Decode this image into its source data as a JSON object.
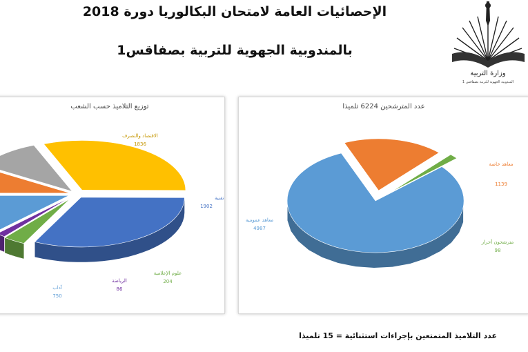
{
  "title_line1": "الإحصائيات العامة لامتحان البكالوريا دورة 2018",
  "title_line2": "بالمندوبية الجهوية للتربية بصفاقس1",
  "logo": {
    "text": "وزارة التربية",
    "subtext": "المندوبية الجهوية للتربية بصفاقس 1"
  },
  "footnote": "عدد التلاميذ المتمتعين بإجراءات استثنائية = 15 تلميذا",
  "colors": {
    "blue": "#5b9bd5",
    "orange": "#ed7d31",
    "green": "#70ad47",
    "gold": "#ffc000",
    "gray": "#a5a5a5",
    "purple": "#7030a0",
    "darkblue": "#4472c4"
  },
  "chart_data": [
    {
      "type": "pie",
      "title": "توزيع التلاميذ حسب الشعب",
      "slices": [
        {
          "label": "الاقتصاد والتصرف",
          "value": 1836,
          "color": "#ffc000"
        },
        {
          "label": "علوم تقنية",
          "value": 1902,
          "color": "#4472c4"
        },
        {
          "label": "علوم الإعلامية",
          "value": 204,
          "color": "#70ad47"
        },
        {
          "label": "الرياضة",
          "value": 86,
          "color": "#7030a0"
        },
        {
          "label": "آداب",
          "value": 750,
          "color": "#5b9bd5"
        },
        {
          "label": "",
          "value": 0,
          "color": "#ed7d31"
        },
        {
          "label": "",
          "value": 0,
          "color": "#a5a5a5"
        }
      ],
      "labels_visible": [
        {
          "name": "الاقتصاد والتصرف",
          "value": "1836"
        },
        {
          "name": "علوم تقنية",
          "value": "1902"
        },
        {
          "name": "علوم الإعلامية",
          "value": "204"
        },
        {
          "name": "الرياضة",
          "value": "86"
        },
        {
          "name": "آداب",
          "value": "750"
        }
      ]
    },
    {
      "type": "pie",
      "title": "عدد المترشحين 6224 تلميذا",
      "slices": [
        {
          "label": "معاهد عمومية",
          "value": 4987,
          "color": "#5b9bd5"
        },
        {
          "label": "معاهد خاصة",
          "value": 1139,
          "color": "#ed7d31"
        },
        {
          "label": "مترشحون أحرار",
          "value": 98,
          "color": "#70ad47"
        }
      ]
    }
  ]
}
